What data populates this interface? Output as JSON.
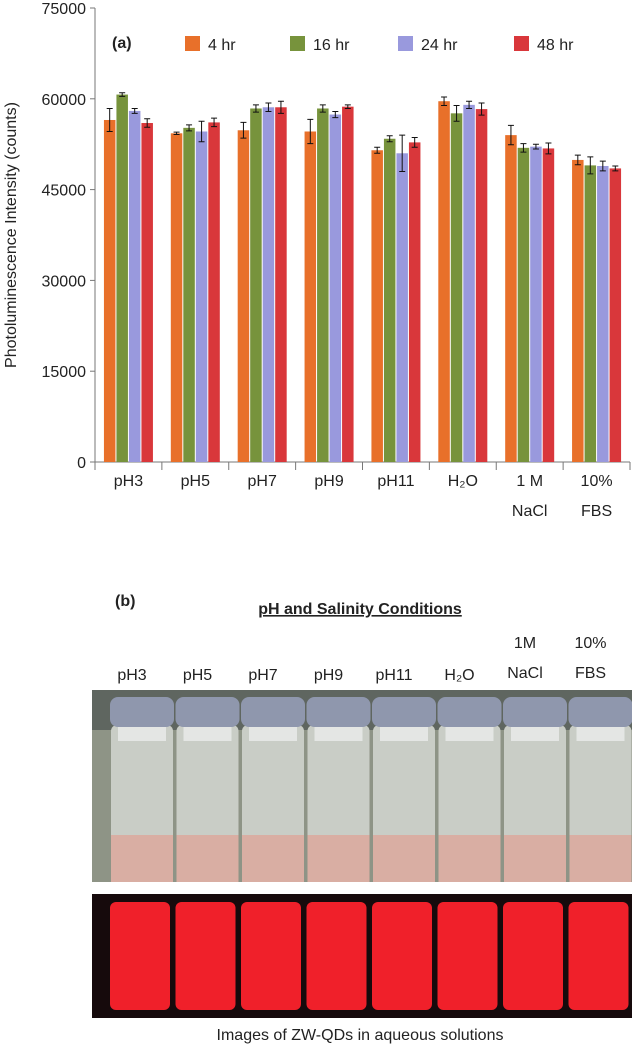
{
  "chart_data": {
    "type": "bar",
    "panel_label": "(a)",
    "y_label": "Photoluminescence Intensity (counts)",
    "categories": [
      "pH3",
      "pH5",
      "pH7",
      "pH9",
      "pH11",
      "H₂O",
      "1 M NaCl",
      "10% FBS"
    ],
    "series": [
      {
        "name": "4 hr",
        "color": "#e8702a",
        "values": [
          56500,
          54300,
          54800,
          54600,
          51500,
          59600,
          54000,
          49900
        ],
        "errors": [
          1900,
          200,
          1300,
          2000,
          500,
          700,
          1600,
          800
        ]
      },
      {
        "name": "16 hr",
        "color": "#77933c",
        "values": [
          60700,
          55200,
          58400,
          58400,
          53400,
          57600,
          51900,
          49000
        ],
        "errors": [
          300,
          500,
          600,
          600,
          500,
          1300,
          700,
          1400
        ]
      },
      {
        "name": "24 hr",
        "color": "#9999dd",
        "values": [
          58000,
          54600,
          58600,
          57400,
          51000,
          59000,
          52100,
          48900
        ],
        "errors": [
          400,
          1700,
          700,
          500,
          3000,
          600,
          400,
          800
        ]
      },
      {
        "name": "48 hr",
        "color": "#d9373b",
        "values": [
          56000,
          56100,
          58600,
          58700,
          52800,
          58300,
          51800,
          48500
        ],
        "errors": [
          700,
          700,
          1000,
          300,
          800,
          1000,
          900,
          400
        ]
      }
    ],
    "ylim": [
      0,
      75000
    ],
    "yticks": [
      0,
      15000,
      30000,
      45000,
      60000,
      75000
    ],
    "grid": false,
    "legend": "top"
  },
  "panel_b": {
    "panel_label": "(b)",
    "title": "pH and Salinity Conditions",
    "labels": [
      "pH3",
      "pH5",
      "pH7",
      "pH9",
      "pH11",
      "H₂O",
      "1M NaCl",
      "10% FBS"
    ],
    "caption": "Images of ZW-QDs in aqueous solutions"
  }
}
